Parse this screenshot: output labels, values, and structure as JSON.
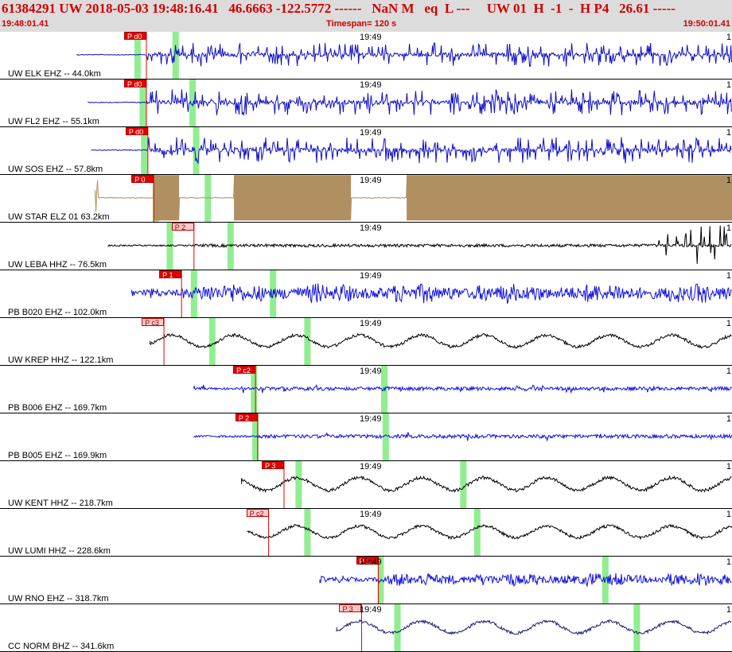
{
  "header": {
    "title": "61384291 UW 2018-05-03 19:48:16.41   46.6663 -122.5772 ------   NaN M   eq  L ---     UW 01  H  -1  -  H P4   26.61 -----",
    "start_time": "19:48:01.41",
    "timespan": "Timespan= 120 s",
    "end_time": "19:50:01.41"
  },
  "colors": {
    "accent": "#d00000",
    "header_bg": "#dcdcdc",
    "pick_strong": "#e00000",
    "pick_weak": "#ffc8c8",
    "window_marker": "#90ee90"
  },
  "panel_time_label": "19:49",
  "channels": [
    {
      "label": "UW ELK EHZ -- 44.0km",
      "pick": "P d0",
      "pick_style": "strong",
      "color": "#1010c8",
      "style": "spiky",
      "start": 0.105,
      "pick_t": 0.2,
      "windows": [
        0.188,
        0.24
      ],
      "amp": 0.45
    },
    {
      "label": "UW FL2 EHZ -- 55.1km",
      "pick": "P d0",
      "pick_style": "strong",
      "color": "#1010c8",
      "style": "spiky",
      "start": 0.12,
      "pick_t": 0.2,
      "windows": [
        0.195,
        0.263
      ],
      "amp": 0.5
    },
    {
      "label": "UW SOS EHZ -- 57.8km",
      "pick": "P d0",
      "pick_style": "strong",
      "color": "#1010c8",
      "style": "spiky",
      "start": 0.125,
      "pick_t": 0.202,
      "windows": [
        0.197,
        0.268
      ],
      "amp": 0.5
    },
    {
      "label": "UW STAR ELZ 01 63.2km",
      "pick": "P 0",
      "pick_style": "strong",
      "color": "#b09060",
      "style": "block",
      "start": 0.13,
      "pick_t": 0.21,
      "windows": [
        0.213,
        0.284
      ],
      "amp": 0.95,
      "gaps": [
        [
          0.245,
          0.32
        ],
        [
          0.48,
          0.555
        ]
      ]
    },
    {
      "label": "UW LEBA HHZ -- 76.5km",
      "pick": "P 2",
      "pick_style": "weak",
      "color": "#000000",
      "style": "quiet",
      "start": 0.148,
      "pick_t": 0.265,
      "windows": [
        0.232,
        0.315
      ],
      "amp": 0.1
    },
    {
      "label": "PB B020 EHZ -- 102.0km",
      "pick": "P 1",
      "pick_style": "strong",
      "color": "#1010e0",
      "style": "bursty",
      "start": 0.18,
      "pick_t": 0.248,
      "windows": [
        0.265,
        0.373
      ],
      "amp": 0.5
    },
    {
      "label": "UW KREP HHZ -- 122.1km",
      "pick": "P c3",
      "pick_style": "weak",
      "color": "#000000",
      "style": "wavy",
      "start": 0.205,
      "pick_t": 0.224,
      "windows": [
        0.29,
        0.42
      ],
      "amp": 0.35
    },
    {
      "label": "PB B006 EHZ -- 169.7km",
      "pick": "P c2",
      "pick_style": "strong",
      "color": "#1010e0",
      "style": "noisy",
      "start": 0.265,
      "pick_t": 0.349,
      "windows": [
        0.347,
        0.525
      ],
      "amp": 0.15
    },
    {
      "label": "PB B005 EHZ -- 169.9km",
      "pick": "P 2",
      "pick_style": "strong",
      "color": "#1010e0",
      "style": "noisy",
      "start": 0.265,
      "pick_t": 0.352,
      "windows": [
        0.349,
        0.527
      ],
      "amp": 0.15
    },
    {
      "label": "UW KENT HHZ -- 218.7km",
      "pick": "P 3",
      "pick_style": "strong",
      "color": "#000000",
      "style": "wavy",
      "start": 0.33,
      "pick_t": 0.388,
      "windows": [
        0.408,
        0.633
      ],
      "amp": 0.38
    },
    {
      "label": "UW LUMI HHZ -- 228.6km",
      "pick": "P c2",
      "pick_style": "weak",
      "color": "#000000",
      "style": "wavy",
      "start": 0.338,
      "pick_t": 0.367,
      "windows": [
        0.42,
        0.652
      ],
      "amp": 0.35
    },
    {
      "label": "UW RNO EHZ -- 318.7km",
      "pick": "P 1",
      "pick_style": "strong",
      "color": "#1010e0",
      "style": "bursty",
      "start": 0.437,
      "pick_t": 0.517,
      "windows": [
        0.52,
        0.827
      ],
      "amp": 0.35
    },
    {
      "label": "CC NORM BHZ -- 341.6km",
      "pick": "P 3",
      "pick_style": "weak",
      "color": "#1a1a70",
      "style": "wavy",
      "start": 0.46,
      "pick_t": 0.494,
      "windows": [
        0.543,
        0.87
      ],
      "amp": 0.35
    }
  ]
}
